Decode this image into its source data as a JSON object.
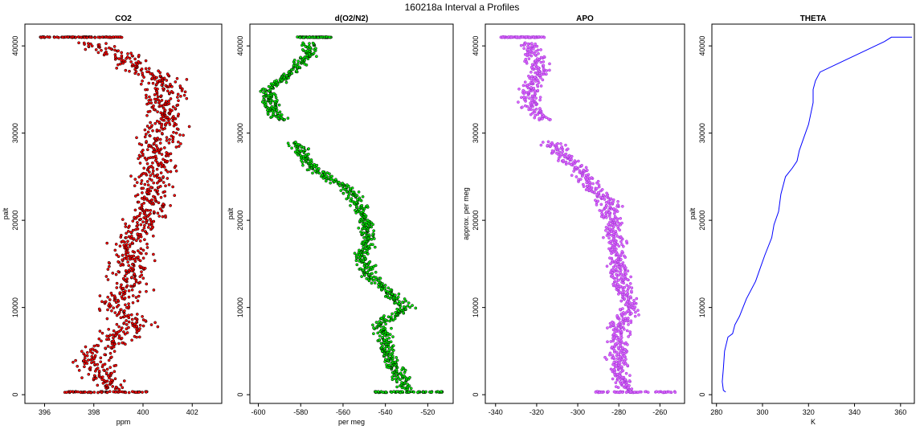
{
  "figure": {
    "title": "160218a   Interval a Profiles"
  },
  "chart_data": [
    {
      "type": "scatter",
      "title": "CO2",
      "xlabel": "ppm",
      "ylabel": "palt",
      "xlim": [
        395.2,
        403.2
      ],
      "ylim": [
        -1000,
        42500
      ],
      "xticks": [
        396,
        398,
        400,
        402
      ],
      "yticks": [
        0,
        10000,
        20000,
        30000,
        40000
      ],
      "color": "#ff0000",
      "outline": "#000000",
      "profile": [
        [
          0,
          398.8
        ],
        [
          2000,
          398.4
        ],
        [
          4000,
          398.0
        ],
        [
          6000,
          398.6
        ],
        [
          8000,
          399.8
        ],
        [
          10000,
          398.8
        ],
        [
          12000,
          399.5
        ],
        [
          14000,
          399.4
        ],
        [
          16000,
          399.5
        ],
        [
          18000,
          399.5
        ],
        [
          20000,
          400.0
        ],
        [
          22000,
          400.3
        ],
        [
          24000,
          400.2
        ],
        [
          26000,
          400.6
        ],
        [
          28000,
          400.6
        ],
        [
          30000,
          400.8
        ],
        [
          32000,
          400.9
        ],
        [
          34000,
          400.8
        ],
        [
          36000,
          400.8
        ],
        [
          38000,
          399.6
        ],
        [
          39500,
          398.6
        ],
        [
          40500,
          397.6
        ],
        [
          41000,
          397.4
        ]
      ],
      "spread": 0.75,
      "bottom_rows": [
        {
          "y": 300,
          "x_range": [
            396.8,
            400.2
          ]
        }
      ],
      "top_rows": [
        {
          "y": 41000,
          "x_range": [
            395.8,
            399.2
          ]
        }
      ]
    },
    {
      "type": "scatter",
      "title": "d(O2/N2)",
      "xlabel": "per meg",
      "ylabel": "palt",
      "xlim": [
        -604,
        -508
      ],
      "ylim": [
        -1000,
        42500
      ],
      "xticks": [
        -600,
        -580,
        -560,
        -540,
        -520
      ],
      "yticks": [
        0,
        10000,
        20000,
        30000,
        40000
      ],
      "color": "#00ee00",
      "outline": "#000000",
      "profile": [
        [
          0,
          -528
        ],
        [
          2000,
          -533
        ],
        [
          4000,
          -538
        ],
        [
          6000,
          -540
        ],
        [
          8000,
          -543
        ],
        [
          10000,
          -530
        ],
        [
          12000,
          -540
        ],
        [
          14000,
          -548
        ],
        [
          16000,
          -551
        ],
        [
          18000,
          -548
        ],
        [
          20000,
          -550
        ],
        [
          22000,
          -553
        ],
        [
          24000,
          -560
        ],
        [
          26000,
          -575
        ],
        [
          28000,
          -580
        ],
        [
          29000,
          -582
        ],
        [
          31500,
          -590
        ],
        [
          33000,
          -594
        ],
        [
          35000,
          -596
        ],
        [
          37000,
          -584
        ],
        [
          39000,
          -576
        ],
        [
          40500,
          -576
        ],
        [
          41000,
          -574
        ]
      ],
      "gap": [
        29000,
        31500
      ],
      "spread": 3.5,
      "bottom_rows": [
        {
          "y": 300,
          "x_range": [
            -545,
            -510
          ]
        }
      ],
      "top_rows": [
        {
          "y": 41000,
          "x_range": [
            -582,
            -565
          ]
        }
      ]
    },
    {
      "type": "scatter",
      "title": "APO",
      "xlabel": "",
      "ylabel": "approx. per meg",
      "xlim": [
        -345,
        -248
      ],
      "ylim": [
        -1000,
        42500
      ],
      "xticks": [
        -340,
        -320,
        -300,
        -280,
        -260
      ],
      "yticks": [
        0,
        10000,
        20000,
        30000,
        40000
      ],
      "color": "#dd66ff",
      "outline": "#9933cc",
      "profile": [
        [
          0,
          -276
        ],
        [
          2000,
          -279
        ],
        [
          4000,
          -280
        ],
        [
          6000,
          -280
        ],
        [
          8000,
          -280
        ],
        [
          10000,
          -274
        ],
        [
          12000,
          -278
        ],
        [
          14000,
          -280
        ],
        [
          16000,
          -281
        ],
        [
          18000,
          -282
        ],
        [
          20000,
          -283
        ],
        [
          22000,
          -285
        ],
        [
          24000,
          -294
        ],
        [
          26000,
          -300
        ],
        [
          28000,
          -310
        ],
        [
          29000,
          -312
        ],
        [
          31500,
          -316
        ],
        [
          33000,
          -322
        ],
        [
          35000,
          -324
        ],
        [
          37000,
          -318
        ],
        [
          39000,
          -322
        ],
        [
          40500,
          -323
        ],
        [
          41000,
          -328
        ]
      ],
      "gap": [
        29000,
        31500
      ],
      "spread": 4.5,
      "bottom_rows": [
        {
          "y": 300,
          "x_range": [
            -292,
            -252
          ]
        }
      ],
      "top_rows": [
        {
          "y": 41000,
          "x_range": [
            -338,
            -316
          ]
        }
      ]
    },
    {
      "type": "line",
      "title": "THETA",
      "xlabel": "K",
      "ylabel": "palt",
      "xlim": [
        278,
        366
      ],
      "ylim": [
        -1000,
        42500
      ],
      "xticks": [
        280,
        300,
        320,
        340,
        360
      ],
      "yticks": [
        0,
        10000,
        20000,
        30000,
        40000
      ],
      "color": "#0000ff",
      "points": [
        [
          284,
          300
        ],
        [
          283,
          500
        ],
        [
          282.5,
          1500
        ],
        [
          283,
          3000
        ],
        [
          283.5,
          5000
        ],
        [
          285,
          6600
        ],
        [
          287,
          7000
        ],
        [
          288,
          8000
        ],
        [
          290,
          9000
        ],
        [
          293,
          11000
        ],
        [
          297,
          13000
        ],
        [
          299,
          14500
        ],
        [
          301,
          16000
        ],
        [
          304,
          18000
        ],
        [
          305,
          19500
        ],
        [
          307,
          21000
        ],
        [
          308,
          23000
        ],
        [
          310,
          25000
        ],
        [
          313,
          26000
        ],
        [
          315,
          26800
        ],
        [
          316,
          28000
        ],
        [
          318,
          29500
        ],
        [
          320,
          31000
        ],
        [
          322,
          33500
        ],
        [
          322,
          35000
        ],
        [
          323,
          36000
        ],
        [
          325,
          37000
        ],
        [
          333,
          38000
        ],
        [
          345,
          39500
        ],
        [
          353,
          40500
        ],
        [
          356,
          41000
        ],
        [
          361,
          41000
        ],
        [
          365,
          41000
        ]
      ]
    }
  ]
}
